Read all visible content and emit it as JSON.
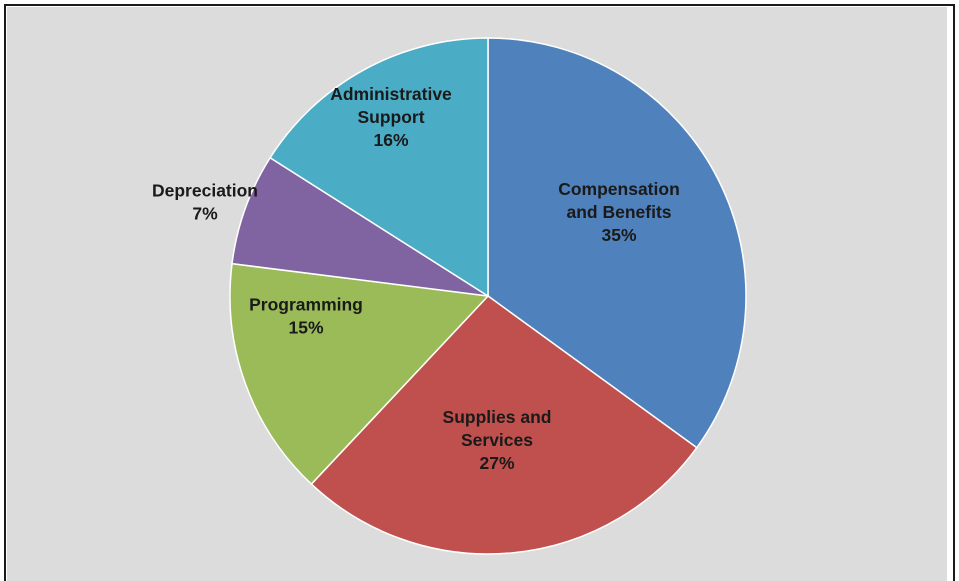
{
  "chart_data": {
    "type": "pie",
    "title": "",
    "slices": [
      {
        "label_lines": [
          "Compensation",
          "and Benefits"
        ],
        "percent_label": "35%",
        "value": 35,
        "color": "#4f81bd"
      },
      {
        "label_lines": [
          "Supplies and",
          "Services"
        ],
        "percent_label": "27%",
        "value": 27,
        "color": "#c0504d"
      },
      {
        "label_lines": [
          "Programming"
        ],
        "percent_label": "15%",
        "value": 15,
        "color": "#9bbb59"
      },
      {
        "label_lines": [
          "Depreciation"
        ],
        "percent_label": "7%",
        "value": 7,
        "color": "#8064a2"
      },
      {
        "label_lines": [
          "Administrative",
          "Support"
        ],
        "percent_label": "16%",
        "value": 16,
        "color": "#4bacc6"
      }
    ],
    "start_angle_deg": 0,
    "direction": "clockwise",
    "legend": "none",
    "data_labels": "category-and-percent"
  },
  "colors": {
    "plot_background": "#dcdcdc",
    "frame_border": "#1a1a1a",
    "slice_edge": "#ffffff",
    "label_text": "#1a1a1a"
  }
}
